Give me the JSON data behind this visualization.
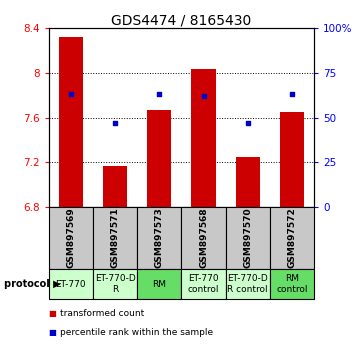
{
  "title": "GDS4474 / 8165430",
  "samples": [
    "GSM897569",
    "GSM897571",
    "GSM897573",
    "GSM897568",
    "GSM897570",
    "GSM897572"
  ],
  "bar_values": [
    8.32,
    7.17,
    7.67,
    8.04,
    7.25,
    7.65
  ],
  "bar_base": 6.8,
  "percentile_values": [
    63,
    47,
    63,
    62,
    47,
    63
  ],
  "ylim_left": [
    6.8,
    8.4
  ],
  "ylim_right": [
    0,
    100
  ],
  "yticks_left": [
    6.8,
    7.2,
    7.6,
    8.0,
    8.4
  ],
  "yticks_right": [
    0,
    25,
    50,
    75,
    100
  ],
  "ytick_labels_left": [
    "6.8",
    "7.2",
    "7.6",
    "8",
    "8.4"
  ],
  "ytick_labels_right": [
    "0",
    "25",
    "50",
    "75",
    "100%"
  ],
  "bar_color": "#cc0000",
  "dot_color": "#0000cc",
  "bar_width": 0.55,
  "protocol_labels": [
    "ET-770",
    "ET-770-D\nR",
    "RM",
    "ET-770\ncontrol",
    "ET-770-D\nR control",
    "RM\ncontrol"
  ],
  "protocol_colors": [
    "#ccffcc",
    "#ccffcc",
    "#66dd66",
    "#ccffcc",
    "#ccffcc",
    "#66dd66"
  ],
  "sample_bg": "#c8c8c8",
  "legend_red_label": "transformed count",
  "legend_blue_label": "percentile rank within the sample",
  "title_fontsize": 10,
  "tick_fontsize": 7.5,
  "sample_fontsize": 6.5,
  "protocol_fontsize": 6.5
}
